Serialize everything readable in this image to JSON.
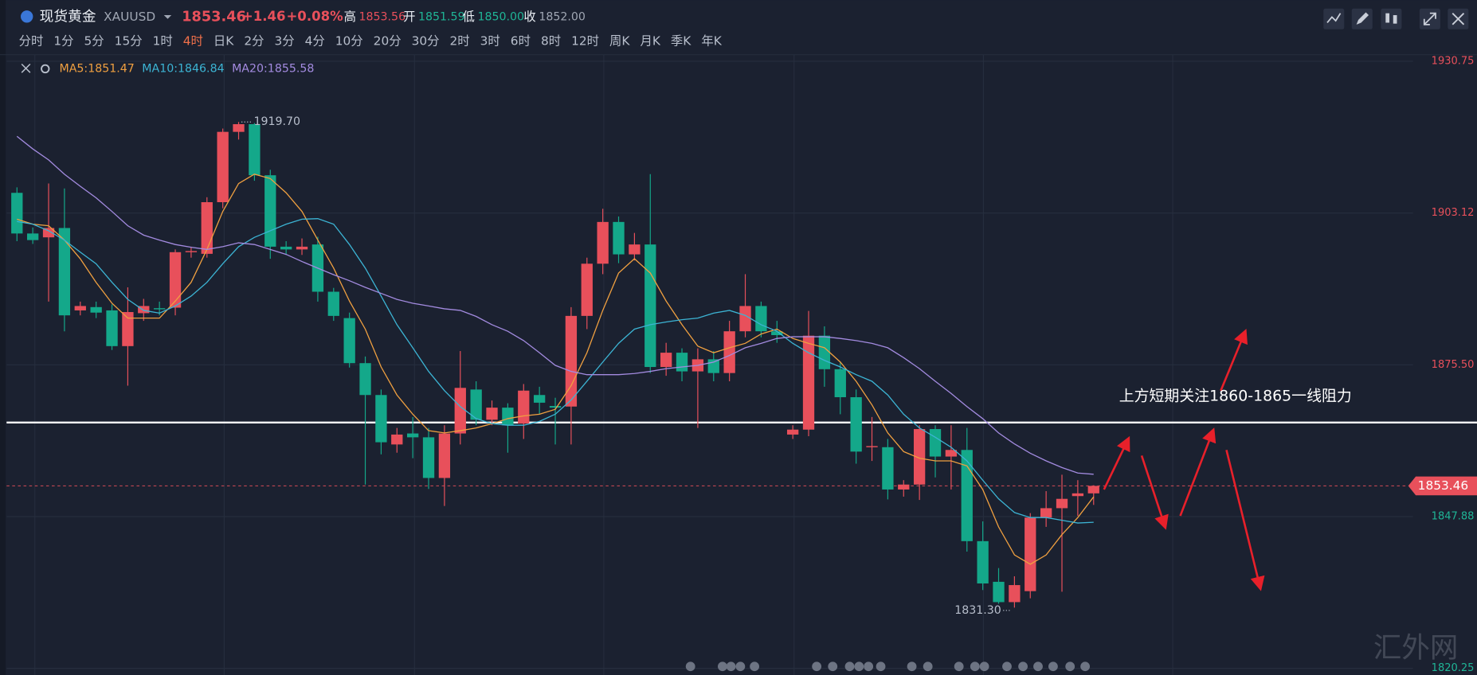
{
  "header": {
    "title": "现货黄金",
    "symbol": "XAUUSD",
    "price": "1853.46",
    "change": "+1.46",
    "change_pct": "+0.08%",
    "high_label": "高",
    "high": "1853.56",
    "open_label": "开",
    "open": "1851.59",
    "low_label": "低",
    "low": "1850.00",
    "close_label": "收",
    "close": "1852.00"
  },
  "periods": [
    "分时",
    "1分",
    "5分",
    "15分",
    "1时",
    "4时",
    "日K",
    "2分",
    "3分",
    "4分",
    "10分",
    "20分",
    "30分",
    "2时",
    "3时",
    "6时",
    "8时",
    "12时",
    "周K",
    "月K",
    "季K",
    "年K"
  ],
  "active_period": "4时",
  "watermark": "汇外网",
  "chart_data": {
    "type": "candlestick",
    "up_color": "#e8505b",
    "down_color": "#14a88a",
    "open": [
      1906.8,
      1899.4,
      1898.7,
      1900.4,
      1885.4,
      1886,
      1885.4,
      1878.9,
      1884.9,
      1885.8,
      1885.9,
      1896,
      1895.7,
      1905.1,
      1917.9,
      1919.3,
      1910,
      1897,
      1896.5,
      1897.4,
      1888.8,
      1884,
      1875.8,
      1870,
      1861,
      1863,
      1862.3,
      1854.9,
      1863,
      1871,
      1865.5,
      1867.7,
      1864.8,
      1870,
      1868,
      1867.9,
      1884.4,
      1893.9,
      1901.5,
      1895.6,
      1897.4,
      1875.1,
      1877.7,
      1874.3,
      1876.5,
      1874,
      1881.6,
      1886.2,
      1881.6,
      1862.8,
      1863.7,
      1880.8,
      1874.7,
      1869.6,
      1860.5,
      1860.5,
      1852.8,
      1853.7,
      1863.8,
      1858.8,
      1860,
      1843.4,
      1836,
      1832.3,
      1834.3,
      1847.7,
      1849.4,
      1851.6,
      1852.1
    ],
    "high": [
      1907.8,
      1900.5,
      1908.5,
      1907.6,
      1887,
      1887,
      1886.5,
      1889.6,
      1887.5,
      1887,
      1896.5,
      1897,
      1906,
      1918.5,
      1919.7,
      1919.5,
      1911,
      1898,
      1898.5,
      1898.8,
      1889.5,
      1885,
      1877,
      1871,
      1864,
      1866,
      1864,
      1864.5,
      1878,
      1872.5,
      1869,
      1868.5,
      1872,
      1871.5,
      1869.5,
      1886,
      1895,
      1903.9,
      1902.5,
      1899.5,
      1910.2,
      1879.5,
      1878.5,
      1878.5,
      1878,
      1883.5,
      1892,
      1887,
      1883.5,
      1864.5,
      1885.3,
      1882.5,
      1876,
      1871,
      1866,
      1862,
      1854.5,
      1864.5,
      1864.5,
      1864.5,
      1864,
      1847,
      1838.5,
      1837,
      1848.5,
      1852.5,
      1855.5,
      1854.5,
      1853.56
    ],
    "low": [
      1898,
      1897.5,
      1887,
      1881.6,
      1884.5,
      1884,
      1878.2,
      1871.7,
      1883.5,
      1884.5,
      1884.5,
      1895,
      1895,
      1904,
      1916.5,
      1909,
      1894.8,
      1895.5,
      1895.5,
      1887,
      1883.5,
      1875,
      1853.7,
      1859.2,
      1859.5,
      1858.5,
      1852.9,
      1849.8,
      1861,
      1864.5,
      1864.5,
      1859.5,
      1862,
      1866.5,
      1861,
      1861,
      1882,
      1892,
      1894,
      1894.5,
      1874,
      1873.5,
      1872.5,
      1864,
      1872.5,
      1872.5,
      1880.5,
      1880.5,
      1879.5,
      1862,
      1862.5,
      1871.5,
      1866.5,
      1857.5,
      1858,
      1851,
      1851.5,
      1850.9,
      1855,
      1852.8,
      1841.5,
      1834.5,
      1832,
      1831.3,
      1833,
      1846,
      1834.2,
      1848,
      1850
    ],
    "close": [
      1899.4,
      1898.2,
      1900.4,
      1884.5,
      1886.2,
      1885,
      1878.9,
      1885.1,
      1886.2,
      1885.6,
      1896,
      1896.2,
      1905.1,
      1917.9,
      1919.3,
      1910,
      1897,
      1896.5,
      1897,
      1888.8,
      1884.4,
      1875.8,
      1870,
      1861.4,
      1862.8,
      1862.3,
      1854.9,
      1863,
      1871.3,
      1865.5,
      1867.7,
      1864.5,
      1870.8,
      1868.6,
      1867.7,
      1884.4,
      1893.9,
      1901.5,
      1895.6,
      1897.4,
      1875.1,
      1877.7,
      1874.3,
      1876.5,
      1874,
      1881.6,
      1886.2,
      1881.6,
      1880.9,
      1863.7,
      1880.8,
      1874.7,
      1869.6,
      1859.7,
      1860.7,
      1852.8,
      1853.7,
      1863.8,
      1858.8,
      1860,
      1843.4,
      1835.7,
      1832.3,
      1835.4,
      1847.7,
      1849.4,
      1851.1,
      1852.1,
      1853.46
    ],
    "series": [
      {
        "name": "MA5:1851.47",
        "color": "#f0a040",
        "values": [
          1902,
          1901.1,
          1900.8,
          1898.2,
          1894.8,
          1890.5,
          1886.7,
          1884,
          1884,
          1884,
          1887.1,
          1890.5,
          1896.5,
          1903.4,
          1908.5,
          1910.2,
          1909.4,
          1906.8,
          1903.4,
          1898.2,
          1893.1,
          1887.1,
          1882,
          1875.1,
          1870,
          1866.5,
          1863.5,
          1863.1,
          1863.5,
          1864,
          1864.8,
          1865.7,
          1866.2,
          1866.5,
          1867.4,
          1871.7,
          1877.7,
          1885.4,
          1892.2,
          1894.8,
          1892.2,
          1887.1,
          1882.8,
          1878.9,
          1877.7,
          1878.6,
          1879.4,
          1881.1,
          1882,
          1880.3,
          1879.4,
          1878.6,
          1876,
          1872.5,
          1868.2,
          1863.1,
          1859.7,
          1858.5,
          1858,
          1858,
          1857.1,
          1852.8,
          1846,
          1840.9,
          1839.2,
          1840.9,
          1844.6,
          1847.7,
          1851.47
        ]
      },
      {
        "name": "MA10:1846.84",
        "color": "#3cb4d4",
        "values": [
          1901.6,
          1901.1,
          1899.9,
          1898.2,
          1896,
          1893.9,
          1890.5,
          1887.4,
          1885.4,
          1884.9,
          1886.2,
          1888,
          1890.5,
          1893.9,
          1897,
          1898.7,
          1899.9,
          1901.1,
          1902,
          1902.1,
          1901.1,
          1897.4,
          1893.1,
          1888,
          1882.8,
          1878.6,
          1874.3,
          1870.8,
          1867.9,
          1865.7,
          1864.8,
          1864.5,
          1864.5,
          1865.2,
          1866.5,
          1869.1,
          1872.5,
          1876,
          1879.4,
          1882,
          1882.8,
          1883.3,
          1883.7,
          1884,
          1884.9,
          1885.4,
          1884.5,
          1882.8,
          1881.6,
          1879.4,
          1877.7,
          1876.3,
          1875.1,
          1873.7,
          1872.5,
          1870,
          1866.5,
          1864,
          1862.3,
          1860.5,
          1858,
          1854.5,
          1851.1,
          1848.6,
          1847.7,
          1847.7,
          1847.2,
          1846.7,
          1846.84
        ]
      },
      {
        "name": "MA20:1855.58",
        "color": "#a38be0",
        "values": [
          1917.1,
          1914.8,
          1912.8,
          1910.2,
          1908,
          1905.9,
          1903.4,
          1900.8,
          1899.1,
          1898.2,
          1897.4,
          1896.9,
          1896.5,
          1897,
          1897.7,
          1897.4,
          1896.5,
          1895.6,
          1894.3,
          1893.1,
          1891.9,
          1890.8,
          1889.6,
          1888.5,
          1887.4,
          1886.7,
          1886.2,
          1885.7,
          1885.4,
          1884.3,
          1882.8,
          1881.6,
          1879.9,
          1877.7,
          1875.4,
          1874.3,
          1873.7,
          1873.7,
          1873.7,
          1873.9,
          1874.3,
          1874.8,
          1875.1,
          1875.4,
          1876,
          1877.2,
          1878.6,
          1879.4,
          1880.3,
          1880.6,
          1880.6,
          1880.6,
          1880.3,
          1879.9,
          1879.4,
          1878.6,
          1876.8,
          1874.8,
          1872.5,
          1870.3,
          1867.9,
          1865.7,
          1863.1,
          1861.1,
          1859.4,
          1858,
          1856.8,
          1855.8,
          1855.58
        ]
      }
    ],
    "ylim": [
      1820.25,
      1930.75
    ],
    "yticks": [
      1820.25,
      1847.88,
      {
        "value": 1875.5,
        "label": "1875.50"
      },
      1903.12,
      1930.75
    ],
    "grid": true,
    "resistance_line": 1865,
    "resistance_color": "#ffffff",
    "high_mark": {
      "value": 1919.7,
      "label": "1919.70"
    },
    "low_mark": {
      "value": 1831.3,
      "label": "1831.30"
    },
    "annotation": "上方短期关注1860-1865一线阻力"
  }
}
